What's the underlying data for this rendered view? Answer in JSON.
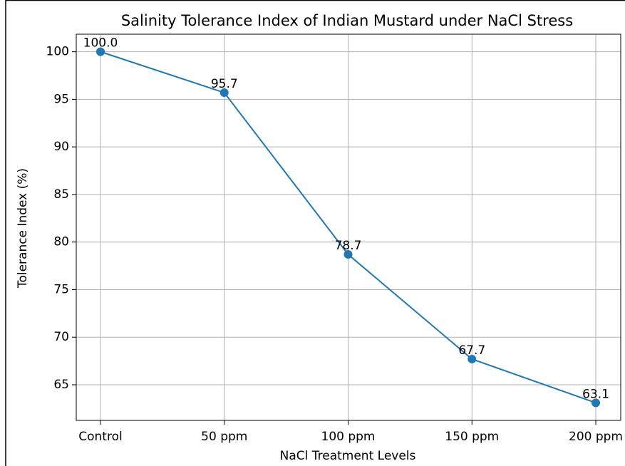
{
  "chart_data": {
    "type": "line",
    "title": "Salinity Tolerance Index of Indian Mustard under NaCl Stress",
    "x_label": "NaCl Treatment Levels",
    "y_label": "Tolerance Index (%)",
    "categories": [
      "Control",
      "50 ppm",
      "100 ppm",
      "150 ppm",
      "200 ppm"
    ],
    "series": [
      {
        "color": "#1f77b4",
        "values": [
          100,
          95.7,
          78.7,
          67.7,
          63.1
        ],
        "value_labels": [
          "100.0",
          "95.7",
          "78.7",
          "67.7",
          "63.1"
        ]
      }
    ],
    "ylim": [
      61.255,
      101.845
    ],
    "yticks": [
      65,
      70,
      75,
      80,
      85,
      90,
      95,
      100
    ],
    "grid": true
  }
}
